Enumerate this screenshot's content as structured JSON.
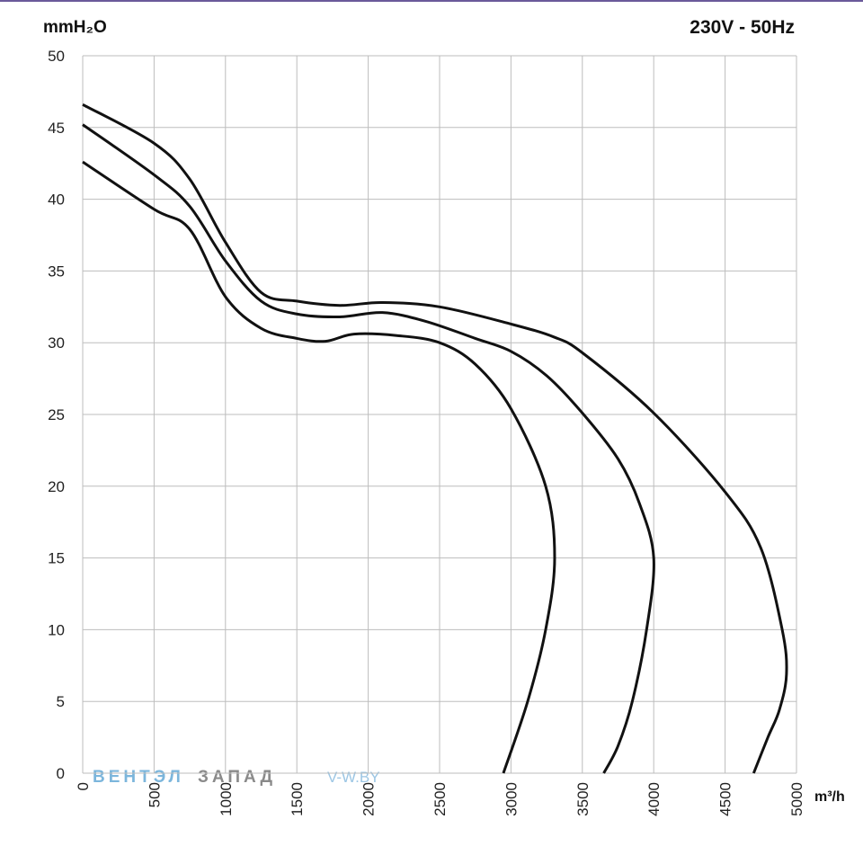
{
  "chart_data": {
    "type": "line",
    "title": "230V - 50Hz",
    "y_label": "mmH₂O",
    "x_label": "m³/h",
    "watermark": {
      "brand_a": "ВЕНТЭЛ",
      "brand_b": "ЗАПАД",
      "site": "V-W.BY"
    },
    "xlim": [
      0,
      5000
    ],
    "ylim": [
      0,
      50
    ],
    "xticks": [
      0,
      500,
      1000,
      1500,
      2000,
      2500,
      3000,
      3500,
      4000,
      4500,
      5000
    ],
    "yticks": [
      0,
      5,
      10,
      15,
      20,
      25,
      30,
      35,
      40,
      45,
      50
    ],
    "grid": true,
    "series": [
      {
        "color": "#111111",
        "x": [
          0,
          500,
          750,
          1000,
          1250,
          1500,
          1700,
          1900,
          2200,
          2500,
          2750,
          3000,
          3243,
          3306,
          3243,
          3117,
          2947
        ],
        "values": [
          42.6,
          39.3,
          37.9,
          33.2,
          31.0,
          30.3,
          30.1,
          30.6,
          30.5,
          30.0,
          28.5,
          25.4,
          20,
          15,
          10,
          5,
          0
        ]
      },
      {
        "color": "#111111",
        "x": [
          0,
          500,
          750,
          1000,
          1250,
          1500,
          1800,
          2100,
          2400,
          2750,
          3000,
          3250,
          3500,
          3750,
          3900,
          4000,
          3950,
          3850,
          3750,
          3650
        ],
        "values": [
          45.2,
          41.7,
          39.5,
          35.7,
          32.9,
          32.0,
          31.8,
          32.1,
          31.5,
          30.3,
          29.4,
          27.7,
          25.1,
          21.9,
          18.8,
          15.0,
          10,
          5,
          1.9,
          0
        ]
      },
      {
        "color": "#111111",
        "x": [
          0,
          500,
          750,
          1000,
          1250,
          1500,
          1800,
          2100,
          2500,
          3000,
          3300,
          3500,
          4000,
          4500,
          4750,
          4900,
          4930,
          4880,
          4800,
          4700
        ],
        "values": [
          46.6,
          43.9,
          41.4,
          37.0,
          33.5,
          32.9,
          32.6,
          32.8,
          32.5,
          31.3,
          30.4,
          29.3,
          25.1,
          19.6,
          15.7,
          10,
          6.9,
          4.4,
          2.5,
          0
        ]
      }
    ]
  }
}
